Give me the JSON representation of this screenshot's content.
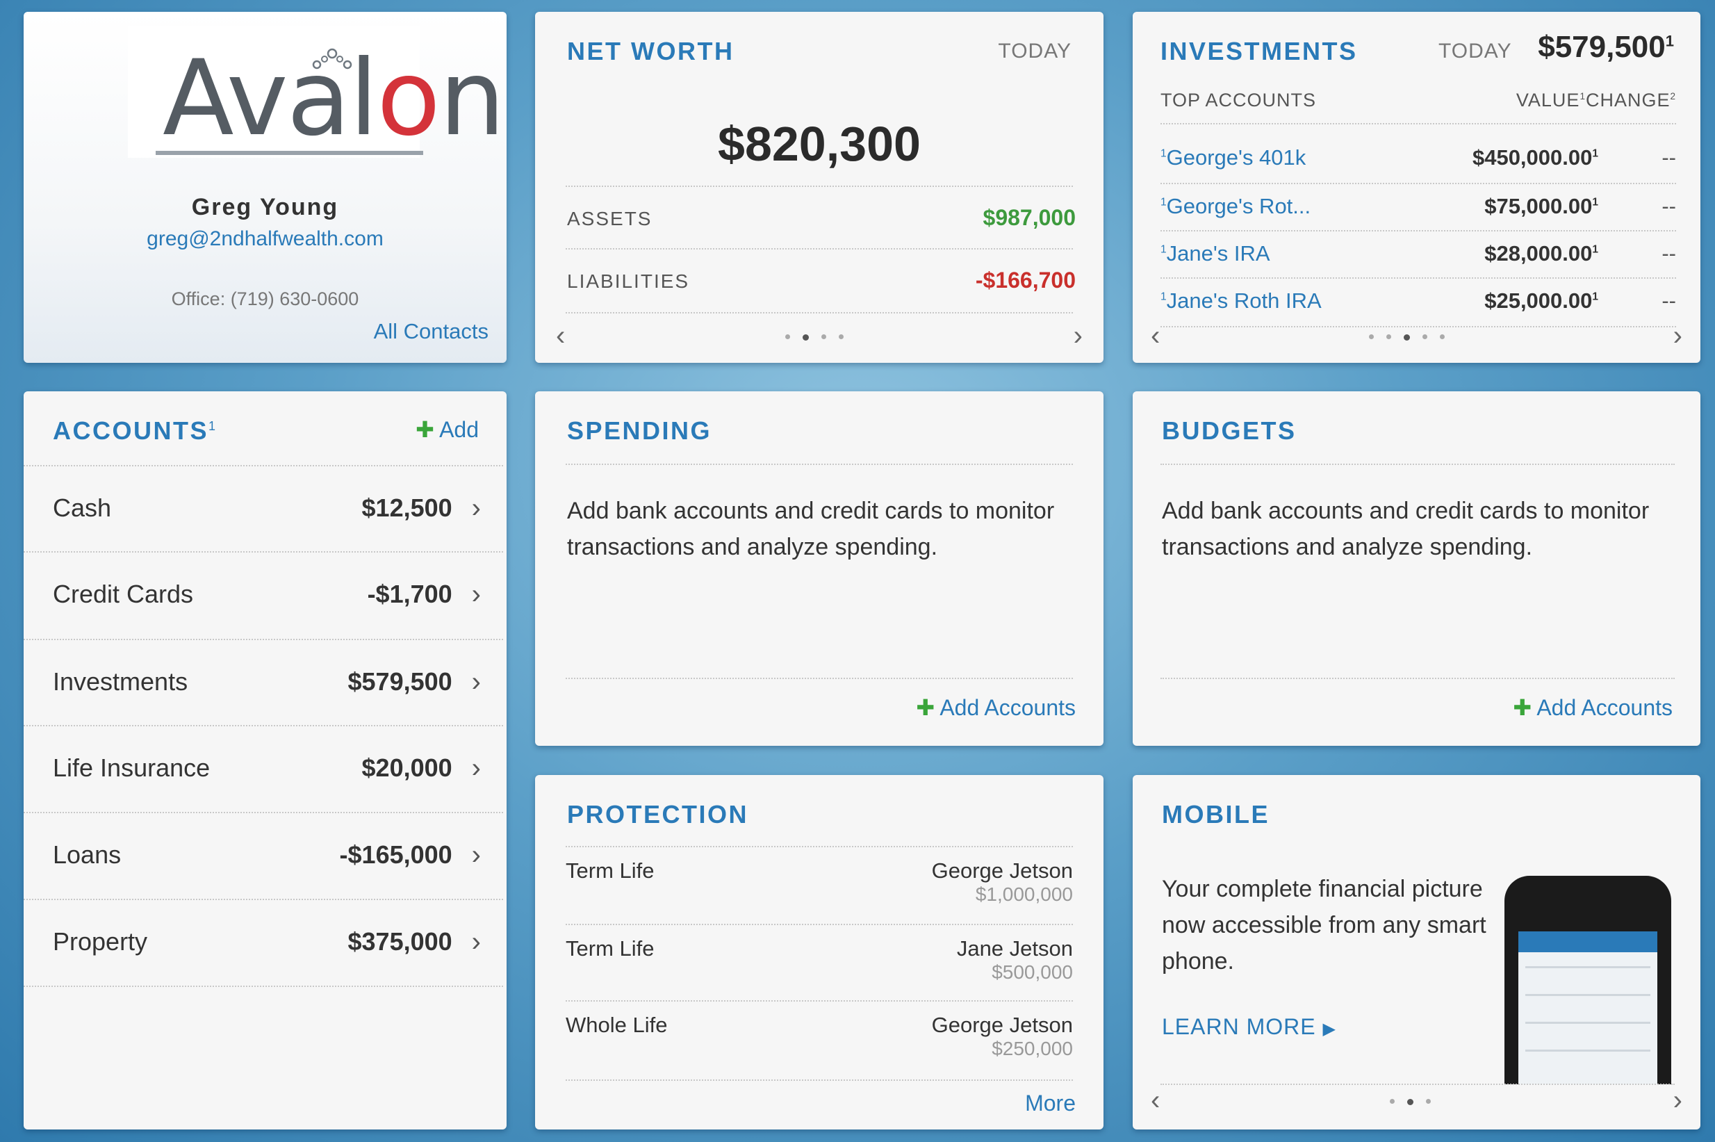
{
  "contact": {
    "logo_prefix": "Aval",
    "logo_o": "o",
    "logo_suffix": "n",
    "name": "Greg Young",
    "email": "greg@2ndhalfwealth.com",
    "office": "Office: (719) 630-0600",
    "all_contacts": "All Contacts"
  },
  "networth": {
    "title": "NET WORTH",
    "period": "TODAY",
    "total": "$820,300",
    "assets_label": "ASSETS",
    "assets_value": "$987,000",
    "liabilities_label": "LIABILITIES",
    "liabilities_value": "-$166,700",
    "colors": {
      "assets": "#3d9a3d",
      "liabilities": "#c9302c"
    }
  },
  "investments": {
    "title": "INVESTMENTS",
    "period": "TODAY",
    "total": "$579,500",
    "total_sup": "1",
    "columns": {
      "accounts": "TOP ACCOUNTS",
      "value": "VALUE",
      "value_sup": "1",
      "change": "CHANGE",
      "change_sup": "2"
    },
    "rows": [
      {
        "sup": "1",
        "name": "George's 401k",
        "value": "$450,000.00",
        "value_sup": "1",
        "change": "--"
      },
      {
        "sup": "1",
        "name": "George's Rot...",
        "value": "$75,000.00",
        "value_sup": "1",
        "change": "--"
      },
      {
        "sup": "1",
        "name": "Jane's IRA",
        "value": "$28,000.00",
        "value_sup": "1",
        "change": "--"
      },
      {
        "sup": "1",
        "name": "Jane's Roth IRA",
        "value": "$25,000.00",
        "value_sup": "1",
        "change": "--"
      }
    ]
  },
  "accounts": {
    "title": "ACCOUNTS",
    "title_sup": "1",
    "add_label": "Add",
    "rows": [
      {
        "label": "Cash",
        "value": "$12,500"
      },
      {
        "label": "Credit Cards",
        "value": "-$1,700"
      },
      {
        "label": "Investments",
        "value": "$579,500"
      },
      {
        "label": "Life Insurance",
        "value": "$20,000"
      },
      {
        "label": "Loans",
        "value": "-$165,000"
      },
      {
        "label": "Property",
        "value": "$375,000"
      }
    ]
  },
  "spending": {
    "title": "SPENDING",
    "message": "Add bank accounts and credit cards to monitor transactions and analyze spending.",
    "add_label": "Add Accounts"
  },
  "budgets": {
    "title": "BUDGETS",
    "message": "Add bank accounts and credit cards to monitor transactions and analyze spending.",
    "add_label": "Add Accounts"
  },
  "protection": {
    "title": "PROTECTION",
    "rows": [
      {
        "type": "Term Life",
        "who": "George Jetson",
        "amount": "$1,000,000"
      },
      {
        "type": "Term Life",
        "who": "Jane Jetson",
        "amount": "$500,000"
      },
      {
        "type": "Whole Life",
        "who": "George Jetson",
        "amount": "$250,000"
      }
    ],
    "more_label": "More"
  },
  "mobile": {
    "title": "MOBILE",
    "message": "Your complete financial picture now accessible from any smart phone.",
    "learn_more": "LEARN MORE",
    "arrow": "▶"
  },
  "icons": {
    "prev": "chevron-left-icon",
    "next": "chevron-right-icon",
    "row": "chevron-right-icon",
    "plus": "plus-icon"
  },
  "accent_color": "#2a7ab8"
}
